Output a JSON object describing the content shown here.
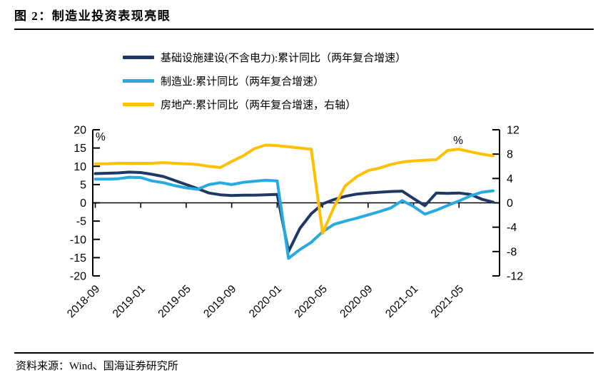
{
  "title": "图 2：制造业投资表现亮眼",
  "source": "资料来源：Wind、国海证券研究所",
  "chart_data": {
    "type": "line",
    "legend_position": "top-left",
    "grid": false,
    "categories": [
      "2018-09",
      "2018-10",
      "2018-11",
      "2018-12",
      "2019-01",
      "2019-02",
      "2019-03",
      "2019-04",
      "2019-05",
      "2019-06",
      "2019-07",
      "2019-08",
      "2019-09",
      "2019-10",
      "2019-11",
      "2019-12",
      "2020-01",
      "2020-02",
      "2020-03",
      "2020-04",
      "2020-05",
      "2020-06",
      "2020-07",
      "2020-08",
      "2020-09",
      "2020-10",
      "2020-11",
      "2020-12",
      "2021-01",
      "2021-02",
      "2021-03",
      "2021-04",
      "2021-05",
      "2021-06",
      "2021-07",
      "2021-08"
    ],
    "x_tick_labels": [
      "2018-09",
      "2019-01",
      "2019-05",
      "2019-09",
      "2020-01",
      "2020-05",
      "2020-09",
      "2021-01",
      "2021-05"
    ],
    "left_axis": {
      "unit": "%",
      "min": -20,
      "max": 20,
      "ticks": [
        20,
        15,
        10,
        5,
        0,
        -5,
        -10,
        -15,
        -20
      ]
    },
    "right_axis": {
      "unit": "%",
      "min": -12,
      "max": 12,
      "ticks": [
        12,
        8,
        4,
        0,
        -4,
        -8,
        -12
      ]
    },
    "series": [
      {
        "name": "基础设施建设(不含电力):累计同比（两年复合增速）",
        "axis": "left",
        "color": "#1F3864",
        "values": [
          8.0,
          8.1,
          8.2,
          8.4,
          8.3,
          7.8,
          7.2,
          6.1,
          5.0,
          3.9,
          2.7,
          2.2,
          2.0,
          2.1,
          2.1,
          2.2,
          2.3,
          -13.3,
          -7.0,
          -3.0,
          -0.3,
          0.9,
          1.8,
          2.4,
          2.7,
          2.9,
          3.1,
          3.2,
          1.2,
          -0.8,
          2.7,
          2.6,
          2.7,
          2.3,
          1.0,
          0.2
        ]
      },
      {
        "name": "制造业:累计同比（两年复合增速）",
        "axis": "left",
        "color": "#27AAE1",
        "values": [
          6.5,
          6.5,
          6.6,
          7.0,
          6.9,
          6.0,
          5.5,
          4.7,
          4.1,
          3.7,
          5.0,
          5.5,
          5.0,
          5.6,
          5.9,
          6.2,
          6.0,
          -15.2,
          -12.8,
          -10.8,
          -7.9,
          -5.9,
          -5.0,
          -4.2,
          -3.3,
          -2.4,
          -1.4,
          0.6,
          -1.0,
          -3.1,
          -2.0,
          -0.7,
          0.5,
          1.9,
          2.9,
          3.3
        ]
      },
      {
        "name": "房地产:累计同比（两年复合增速，右轴）",
        "axis": "right",
        "color": "#FFC000",
        "values": [
          6.4,
          6.4,
          6.5,
          6.5,
          6.5,
          6.5,
          6.6,
          6.5,
          6.4,
          6.3,
          6.0,
          5.8,
          6.8,
          7.7,
          8.9,
          9.5,
          9.4,
          9.2,
          9.0,
          8.8,
          -5.0,
          -0.7,
          2.8,
          4.3,
          5.3,
          5.7,
          6.3,
          6.7,
          6.9,
          7.0,
          7.1,
          8.6,
          8.8,
          8.4,
          8.0,
          7.7
        ]
      }
    ]
  }
}
